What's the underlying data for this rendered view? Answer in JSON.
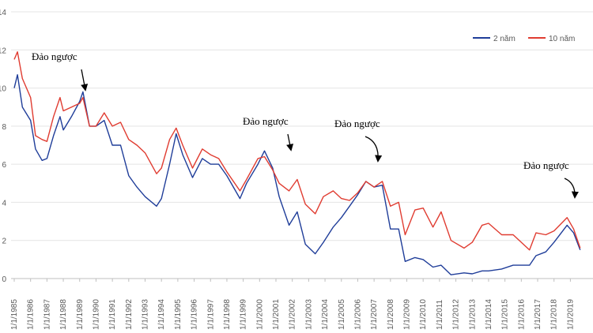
{
  "chart_data": {
    "type": "line",
    "annotations": [
      "Đảo ngược",
      "Đảo ngược",
      "Đảo ngược",
      "Đảo ngược"
    ],
    "x": [
      1985.0,
      1985.2,
      1985.5,
      1986.0,
      1986.3,
      1986.7,
      1987.0,
      1987.4,
      1987.8,
      1988.0,
      1988.5,
      1989.0,
      1989.2,
      1989.6,
      1990.0,
      1990.5,
      1991.0,
      1991.5,
      1992.0,
      1992.5,
      1993.0,
      1993.7,
      1994.0,
      1994.5,
      1994.9,
      1995.3,
      1995.9,
      1996.5,
      1997.0,
      1997.5,
      1998.0,
      1998.8,
      1999.2,
      1999.9,
      2000.3,
      2000.8,
      2001.2,
      2001.8,
      2002.3,
      2002.8,
      2003.4,
      2003.9,
      2004.5,
      2005.0,
      2005.5,
      2006.0,
      2006.5,
      2007.0,
      2007.5,
      2008.0,
      2008.5,
      2008.9,
      2009.5,
      2010.0,
      2010.6,
      2011.1,
      2011.7,
      2012.5,
      2013.0,
      2013.6,
      2014.0,
      2014.8,
      2015.5,
      2016.5,
      2016.9,
      2017.5,
      2018.0,
      2018.8,
      2019.2,
      2019.6
    ],
    "series": [
      {
        "name": "2 năm",
        "color": "#1f3d99",
        "values": [
          10.0,
          10.7,
          9.0,
          8.3,
          6.8,
          6.2,
          6.3,
          7.5,
          8.5,
          7.8,
          8.5,
          9.3,
          9.8,
          8.0,
          8.0,
          8.3,
          7.0,
          7.0,
          5.4,
          4.8,
          4.3,
          3.8,
          4.2,
          6.0,
          7.6,
          6.5,
          5.3,
          6.3,
          6.0,
          6.0,
          5.4,
          4.2,
          5.0,
          6.0,
          6.7,
          5.8,
          4.3,
          2.8,
          3.5,
          1.8,
          1.3,
          1.9,
          2.7,
          3.2,
          3.8,
          4.4,
          5.1,
          4.8,
          4.9,
          2.6,
          2.6,
          0.9,
          1.1,
          1.0,
          0.6,
          0.7,
          0.2,
          0.3,
          0.25,
          0.4,
          0.4,
          0.5,
          0.7,
          0.7,
          1.2,
          1.4,
          1.9,
          2.8,
          2.4,
          1.5
        ]
      },
      {
        "name": "10 năm",
        "color": "#e03c31",
        "values": [
          11.5,
          11.9,
          10.5,
          9.5,
          7.5,
          7.3,
          7.2,
          8.5,
          9.5,
          8.8,
          9.0,
          9.2,
          9.5,
          8.0,
          8.0,
          8.7,
          8.0,
          8.2,
          7.3,
          7.0,
          6.6,
          5.5,
          5.8,
          7.3,
          7.9,
          7.0,
          5.8,
          6.8,
          6.5,
          6.3,
          5.6,
          4.6,
          5.2,
          6.3,
          6.4,
          5.7,
          5.0,
          4.6,
          5.2,
          3.9,
          3.4,
          4.3,
          4.6,
          4.2,
          4.1,
          4.5,
          5.1,
          4.8,
          5.1,
          3.8,
          4.0,
          2.3,
          3.6,
          3.7,
          2.7,
          3.5,
          2.0,
          1.6,
          1.9,
          2.8,
          2.9,
          2.3,
          2.3,
          1.5,
          2.4,
          2.3,
          2.5,
          3.2,
          2.6,
          1.6
        ]
      }
    ],
    "xlim": [
      1985,
      2019.9
    ],
    "xticks": [
      {
        "value": 1985,
        "label": "1/1/1985"
      },
      {
        "value": 1986,
        "label": "1/1/1986"
      },
      {
        "value": 1987,
        "label": "1/1/1987"
      },
      {
        "value": 1988,
        "label": "1/1/1988"
      },
      {
        "value": 1989,
        "label": "1/1/1989"
      },
      {
        "value": 1990,
        "label": "1/1/1990"
      },
      {
        "value": 1991,
        "label": "1/1/1991"
      },
      {
        "value": 1992,
        "label": "1/1/1992"
      },
      {
        "value": 1993,
        "label": "1/1/1993"
      },
      {
        "value": 1994,
        "label": "1/1/1994"
      },
      {
        "value": 1995,
        "label": "1/1/1995"
      },
      {
        "value": 1996,
        "label": "1/1/1996"
      },
      {
        "value": 1997,
        "label": "1/1/1997"
      },
      {
        "value": 1998,
        "label": "1/1/1998"
      },
      {
        "value": 1999,
        "label": "1/1/1999"
      },
      {
        "value": 2000,
        "label": "1/1/2000"
      },
      {
        "value": 2001,
        "label": "1/1/2001"
      },
      {
        "value": 2002,
        "label": "1/1/2002"
      },
      {
        "value": 2003,
        "label": "1/1/2003"
      },
      {
        "value": 2004,
        "label": "1/1/2004"
      },
      {
        "value": 2005,
        "label": "1/1/2005"
      },
      {
        "value": 2006,
        "label": "1/1/2006"
      },
      {
        "value": 2007,
        "label": "1/1/2007"
      },
      {
        "value": 2008,
        "label": "1/1/2008"
      },
      {
        "value": 2009,
        "label": "1/1/2009"
      },
      {
        "value": 2010,
        "label": "1/1/2010"
      },
      {
        "value": 2011,
        "label": "1/1/2011"
      },
      {
        "value": 2012,
        "label": "1/1/2012"
      },
      {
        "value": 2013,
        "label": "1/1/2013"
      },
      {
        "value": 2014,
        "label": "1/1/2014"
      },
      {
        "value": 2015,
        "label": "1/1/2015"
      },
      {
        "value": 2016,
        "label": "1/1/2016"
      },
      {
        "value": 2017,
        "label": "1/1/2017"
      },
      {
        "value": 2018,
        "label": "1/1/2018"
      },
      {
        "value": 2019,
        "label": "1/1/2019"
      }
    ],
    "ylim": [
      0,
      14
    ],
    "yticks": [
      0,
      2,
      4,
      6,
      8,
      10,
      12,
      14
    ],
    "grid": true,
    "legend": "top-right"
  }
}
